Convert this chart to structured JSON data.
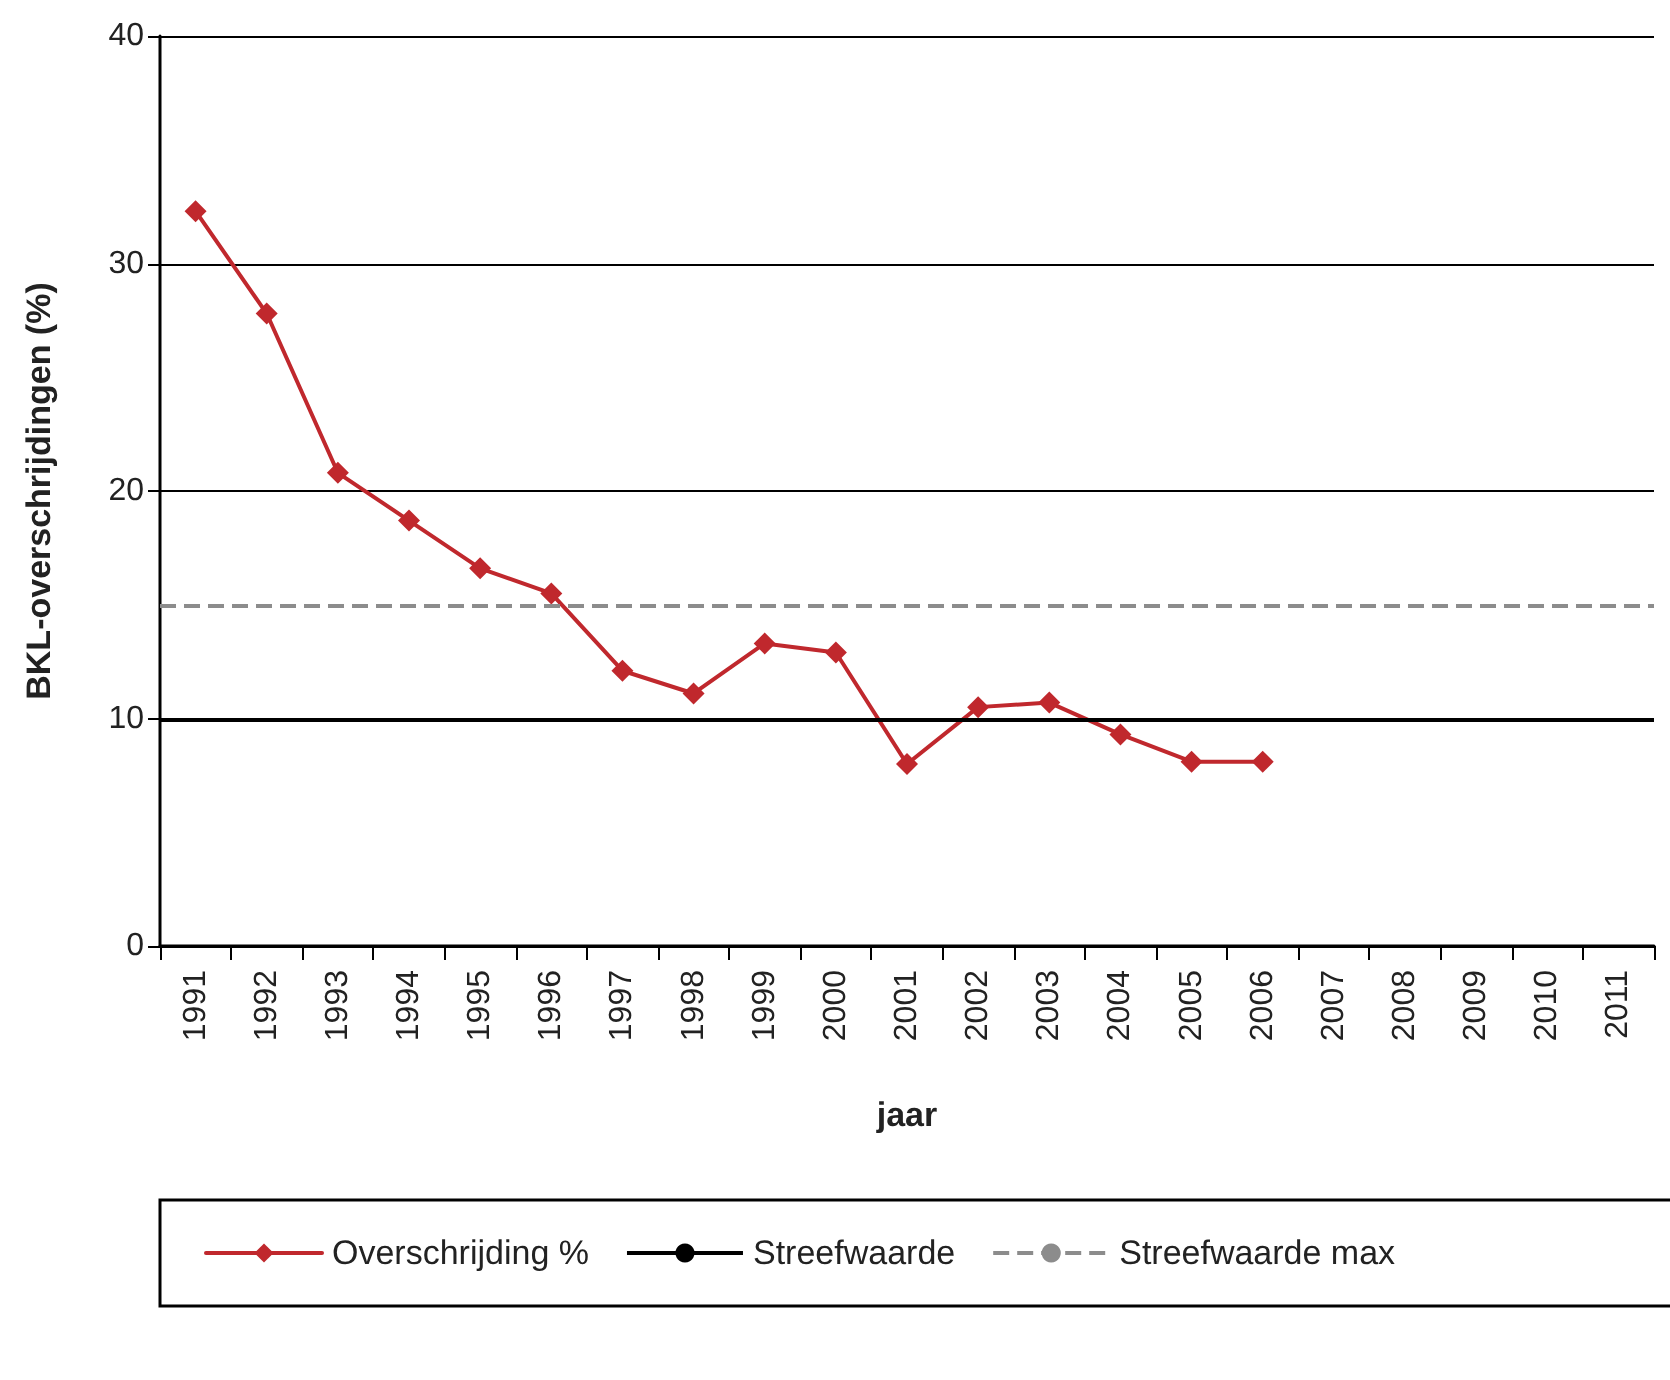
{
  "chart_data": {
    "type": "line",
    "xlabel": "jaar",
    "ylabel": "BKL-overschrijdingen (%)",
    "categories": [
      "1991",
      "1992",
      "1993",
      "1994",
      "1995",
      "1996",
      "1997",
      "1998",
      "1999",
      "2000",
      "2001",
      "2002",
      "2003",
      "2004",
      "2005",
      "2006",
      "2007",
      "2008",
      "2009",
      "2010",
      "2011"
    ],
    "series": [
      {
        "name": "Overschrijding %",
        "color": "#c0282d",
        "values": [
          32.3,
          27.8,
          20.8,
          18.7,
          16.6,
          15.5,
          12.1,
          11.1,
          13.3,
          12.9,
          8.0,
          10.5,
          10.7,
          9.3,
          8.1,
          8.1,
          null,
          null,
          null,
          null,
          null
        ]
      }
    ],
    "ylim": [
      0,
      40
    ],
    "yticks": [
      0,
      10,
      20,
      30,
      40
    ],
    "ref_lines": [
      {
        "axis": "y",
        "value": 10,
        "label": "Streefwaarde",
        "color": "#000000",
        "line_style": "solid"
      },
      {
        "axis": "y",
        "value": 15,
        "label": "Streefwaarde max",
        "color": "#8c8c8c",
        "line_style": "dashed"
      }
    ],
    "grid": "y",
    "legend": "bottom",
    "marker": "diamond",
    "line_style": "solid"
  }
}
